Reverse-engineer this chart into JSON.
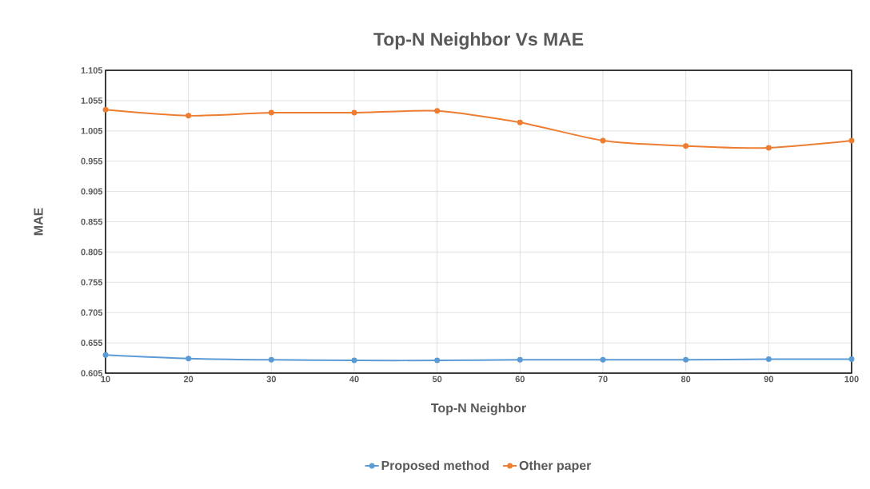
{
  "chart_data": {
    "type": "line",
    "title": "Top-N Neighbor Vs MAE",
    "xlabel": "Top-N Neighbor",
    "ylabel": "MAE",
    "x": [
      10,
      20,
      30,
      40,
      50,
      60,
      70,
      80,
      90,
      100
    ],
    "series": [
      {
        "name": "Proposed method",
        "color": "#5b9bd5",
        "values": [
          0.635,
          0.629,
          0.627,
          0.626,
          0.626,
          0.627,
          0.627,
          0.627,
          0.628,
          0.628
        ]
      },
      {
        "name": "Other paper",
        "color": "#ed7d31",
        "values": [
          1.04,
          1.03,
          1.035,
          1.035,
          1.038,
          1.019,
          0.989,
          0.98,
          0.977,
          0.989
        ]
      }
    ],
    "xlim": [
      10,
      100
    ],
    "xticks": [
      10,
      20,
      30,
      40,
      50,
      60,
      70,
      80,
      90,
      100
    ],
    "ylim": [
      0.605,
      1.105
    ],
    "yticks": [
      0.605,
      0.655,
      0.705,
      0.755,
      0.805,
      0.855,
      0.905,
      0.955,
      1.005,
      1.055,
      1.105
    ],
    "grid": true,
    "legend": "bottom",
    "marker": "circle",
    "line_style": "solid"
  }
}
